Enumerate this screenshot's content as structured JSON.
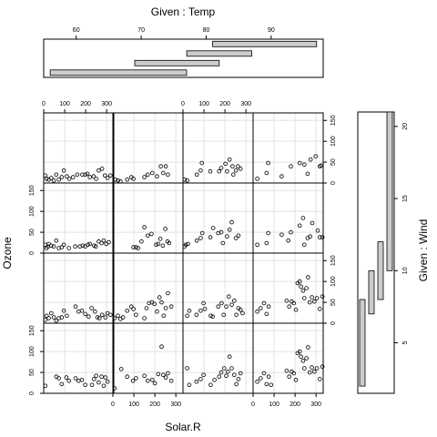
{
  "chart_data": {
    "type": "scatter",
    "plot_kind": "coplot",
    "xlabel": "Solar.R",
    "ylabel": "Ozone",
    "given_top_label": "Given : Temp",
    "given_right_label": "Given : Wind",
    "xlim": [
      0,
      334
    ],
    "ylim": [
      0,
      168
    ],
    "x_ticks": [
      0,
      100,
      200,
      300
    ],
    "y_ticks": [
      0,
      50,
      100,
      150
    ],
    "temp_axis": {
      "range": [
        55,
        98
      ],
      "ticks": [
        60,
        70,
        80,
        90
      ]
    },
    "wind_axis": {
      "range": [
        1.5,
        21
      ],
      "ticks": [
        5,
        10,
        15,
        20
      ]
    },
    "temp_intervals": [
      [
        56,
        77
      ],
      [
        69,
        82
      ],
      [
        77,
        87
      ],
      [
        81,
        97
      ]
    ],
    "wind_intervals": [
      [
        2,
        8
      ],
      [
        7,
        10
      ],
      [
        8,
        12
      ],
      [
        10,
        21
      ]
    ],
    "grid": true,
    "panels": [
      {
        "row": 1,
        "col": 1,
        "points": [
          [
            8,
            18
          ],
          [
            14,
            10
          ],
          [
            24,
            8
          ],
          [
            36,
            12
          ],
          [
            48,
            6
          ],
          [
            60,
            20
          ],
          [
            72,
            8
          ],
          [
            86,
            14
          ],
          [
            96,
            30
          ],
          [
            110,
            16
          ],
          [
            122,
            10
          ],
          [
            140,
            14
          ],
          [
            160,
            20
          ],
          [
            184,
            20
          ],
          [
            198,
            20
          ],
          [
            208,
            22
          ],
          [
            220,
            14
          ],
          [
            238,
            16
          ],
          [
            250,
            10
          ],
          [
            262,
            30
          ],
          [
            278,
            34
          ],
          [
            292,
            18
          ],
          [
            304,
            12
          ],
          [
            318,
            18
          ]
        ]
      },
      {
        "row": 1,
        "col": 2,
        "points": [
          [
            12,
            8
          ],
          [
            24,
            6
          ],
          [
            36,
            4
          ],
          [
            68,
            8
          ],
          [
            88,
            14
          ],
          [
            98,
            10
          ],
          [
            150,
            14
          ],
          [
            166,
            20
          ],
          [
            188,
            24
          ],
          [
            210,
            16
          ],
          [
            228,
            40
          ],
          [
            240,
            24
          ],
          [
            252,
            40
          ],
          [
            262,
            20
          ]
        ]
      },
      {
        "row": 1,
        "col": 3,
        "points": [
          [
            8,
            8
          ],
          [
            20,
            6
          ],
          [
            66,
            20
          ],
          [
            84,
            30
          ],
          [
            90,
            48
          ],
          [
            130,
            28
          ],
          [
            172,
            28
          ],
          [
            182,
            36
          ],
          [
            202,
            46
          ],
          [
            210,
            28
          ],
          [
            222,
            56
          ],
          [
            236,
            40
          ],
          [
            240,
            20
          ],
          [
            252,
            30
          ],
          [
            262,
            40
          ],
          [
            274,
            34
          ]
        ]
      },
      {
        "row": 1,
        "col": 4,
        "points": [
          [
            20,
            10
          ],
          [
            64,
            24
          ],
          [
            72,
            48
          ],
          [
            136,
            16
          ],
          [
            180,
            40
          ],
          [
            222,
            48
          ],
          [
            244,
            44
          ],
          [
            260,
            22
          ],
          [
            274,
            56
          ],
          [
            298,
            64
          ],
          [
            318,
            40
          ],
          [
            324,
            42
          ]
        ]
      },
      {
        "row": 2,
        "col": 1,
        "points": [
          [
            8,
            20
          ],
          [
            14,
            12
          ],
          [
            20,
            16
          ],
          [
            24,
            22
          ],
          [
            36,
            18
          ],
          [
            48,
            16
          ],
          [
            60,
            30
          ],
          [
            72,
            12
          ],
          [
            86,
            14
          ],
          [
            96,
            20
          ],
          [
            120,
            12
          ],
          [
            150,
            16
          ],
          [
            172,
            16
          ],
          [
            186,
            18
          ],
          [
            198,
            16
          ],
          [
            210,
            20
          ],
          [
            220,
            22
          ],
          [
            240,
            18
          ],
          [
            248,
            16
          ],
          [
            262,
            28
          ],
          [
            276,
            24
          ],
          [
            286,
            30
          ],
          [
            298,
            22
          ],
          [
            310,
            26
          ]
        ]
      },
      {
        "row": 2,
        "col": 2,
        "points": [
          [
            98,
            14
          ],
          [
            110,
            14
          ],
          [
            120,
            12
          ],
          [
            136,
            28
          ],
          [
            150,
            62
          ],
          [
            166,
            42
          ],
          [
            184,
            46
          ],
          [
            206,
            20
          ],
          [
            216,
            22
          ],
          [
            226,
            34
          ],
          [
            238,
            18
          ],
          [
            250,
            58
          ],
          [
            260,
            28
          ],
          [
            268,
            24
          ]
        ]
      },
      {
        "row": 2,
        "col": 3,
        "points": [
          [
            8,
            16
          ],
          [
            14,
            20
          ],
          [
            24,
            22
          ],
          [
            66,
            30
          ],
          [
            84,
            36
          ],
          [
            92,
            48
          ],
          [
            130,
            38
          ],
          [
            144,
            60
          ],
          [
            168,
            48
          ],
          [
            182,
            50
          ],
          [
            190,
            24
          ],
          [
            210,
            40
          ],
          [
            222,
            56
          ],
          [
            232,
            74
          ],
          [
            252,
            36
          ],
          [
            264,
            42
          ]
        ]
      },
      {
        "row": 2,
        "col": 4,
        "points": [
          [
            20,
            20
          ],
          [
            64,
            24
          ],
          [
            72,
            48
          ],
          [
            136,
            44
          ],
          [
            168,
            30
          ],
          [
            180,
            50
          ],
          [
            222,
            66
          ],
          [
            238,
            84
          ],
          [
            244,
            20
          ],
          [
            260,
            36
          ],
          [
            272,
            40
          ],
          [
            282,
            72
          ],
          [
            308,
            54
          ],
          [
            318,
            38
          ],
          [
            330,
            38
          ]
        ]
      },
      {
        "row": 3,
        "col": 1,
        "points": [
          [
            8,
            8
          ],
          [
            14,
            18
          ],
          [
            24,
            12
          ],
          [
            36,
            24
          ],
          [
            48,
            14
          ],
          [
            60,
            6
          ],
          [
            72,
            12
          ],
          [
            86,
            14
          ],
          [
            96,
            30
          ],
          [
            110,
            18
          ],
          [
            152,
            40
          ],
          [
            166,
            28
          ],
          [
            182,
            30
          ],
          [
            198,
            22
          ],
          [
            214,
            16
          ],
          [
            228,
            36
          ],
          [
            244,
            28
          ],
          [
            256,
            14
          ],
          [
            266,
            12
          ],
          [
            278,
            20
          ],
          [
            294,
            14
          ],
          [
            304,
            24
          ],
          [
            318,
            20
          ]
        ]
      },
      {
        "row": 3,
        "col": 2,
        "points": [
          [
            8,
            12
          ],
          [
            24,
            18
          ],
          [
            36,
            10
          ],
          [
            48,
            14
          ],
          [
            68,
            30
          ],
          [
            88,
            40
          ],
          [
            98,
            34
          ],
          [
            110,
            20
          ],
          [
            150,
            12
          ],
          [
            160,
            36
          ],
          [
            172,
            48
          ],
          [
            186,
            50
          ],
          [
            198,
            46
          ],
          [
            210,
            28
          ],
          [
            222,
            62
          ],
          [
            232,
            50
          ],
          [
            242,
            18
          ],
          [
            252,
            36
          ],
          [
            262,
            72
          ],
          [
            278,
            40
          ]
        ]
      },
      {
        "row": 3,
        "col": 3,
        "points": [
          [
            20,
            18
          ],
          [
            30,
            30
          ],
          [
            64,
            20
          ],
          [
            84,
            30
          ],
          [
            98,
            48
          ],
          [
            104,
            34
          ],
          [
            132,
            18
          ],
          [
            142,
            16
          ],
          [
            168,
            40
          ],
          [
            184,
            48
          ],
          [
            194,
            20
          ],
          [
            206,
            40
          ],
          [
            218,
            64
          ],
          [
            232,
            44
          ],
          [
            244,
            54
          ],
          [
            254,
            20
          ],
          [
            264,
            36
          ],
          [
            274,
            32
          ],
          [
            284,
            24
          ]
        ]
      },
      {
        "row": 3,
        "col": 4,
        "points": [
          [
            20,
            28
          ],
          [
            36,
            36
          ],
          [
            52,
            48
          ],
          [
            64,
            22
          ],
          [
            74,
            40
          ],
          [
            160,
            54
          ],
          [
            172,
            40
          ],
          [
            184,
            52
          ],
          [
            194,
            48
          ],
          [
            204,
            32
          ],
          [
            212,
            96
          ],
          [
            222,
            100
          ],
          [
            228,
            88
          ],
          [
            238,
            78
          ],
          [
            244,
            60
          ],
          [
            254,
            84
          ],
          [
            262,
            110
          ],
          [
            270,
            50
          ],
          [
            280,
            62
          ],
          [
            292,
            52
          ],
          [
            304,
            60
          ],
          [
            318,
            34
          ],
          [
            330,
            64
          ]
        ]
      },
      {
        "row": 4,
        "col": 1,
        "points": [
          [
            8,
            18
          ],
          [
            60,
            40
          ],
          [
            72,
            36
          ],
          [
            86,
            22
          ],
          [
            108,
            38
          ],
          [
            120,
            30
          ],
          [
            152,
            36
          ],
          [
            166,
            30
          ],
          [
            182,
            32
          ],
          [
            198,
            20
          ],
          [
            230,
            20
          ],
          [
            240,
            34
          ],
          [
            250,
            42
          ],
          [
            262,
            26
          ],
          [
            276,
            40
          ],
          [
            286,
            18
          ],
          [
            294,
            38
          ],
          [
            304,
            28
          ]
        ]
      },
      {
        "row": 4,
        "col": 2,
        "points": [
          [
            8,
            12
          ],
          [
            40,
            58
          ],
          [
            68,
            40
          ],
          [
            96,
            30
          ],
          [
            110,
            36
          ],
          [
            150,
            42
          ],
          [
            166,
            30
          ],
          [
            188,
            32
          ],
          [
            200,
            24
          ],
          [
            216,
            46
          ],
          [
            232,
            112
          ],
          [
            240,
            44
          ],
          [
            252,
            38
          ],
          [
            262,
            48
          ],
          [
            278,
            30
          ]
        ]
      },
      {
        "row": 4,
        "col": 3,
        "points": [
          [
            20,
            60
          ],
          [
            30,
            20
          ],
          [
            64,
            28
          ],
          [
            84,
            34
          ],
          [
            98,
            44
          ],
          [
            132,
            20
          ],
          [
            150,
            32
          ],
          [
            172,
            40
          ],
          [
            182,
            50
          ],
          [
            196,
            60
          ],
          [
            206,
            42
          ],
          [
            214,
            52
          ],
          [
            222,
            88
          ],
          [
            232,
            60
          ],
          [
            244,
            44
          ],
          [
            254,
            22
          ],
          [
            264,
            34
          ],
          [
            274,
            48
          ]
        ]
      },
      {
        "row": 4,
        "col": 4,
        "points": [
          [
            20,
            28
          ],
          [
            36,
            36
          ],
          [
            52,
            48
          ],
          [
            64,
            22
          ],
          [
            74,
            40
          ],
          [
            86,
            20
          ],
          [
            160,
            54
          ],
          [
            172,
            40
          ],
          [
            184,
            52
          ],
          [
            194,
            48
          ],
          [
            204,
            32
          ],
          [
            212,
            96
          ],
          [
            222,
            100
          ],
          [
            228,
            88
          ],
          [
            238,
            78
          ],
          [
            244,
            60
          ],
          [
            254,
            84
          ],
          [
            262,
            110
          ],
          [
            270,
            50
          ],
          [
            280,
            62
          ],
          [
            292,
            52
          ],
          [
            304,
            60
          ],
          [
            318,
            34
          ],
          [
            330,
            64
          ]
        ]
      }
    ]
  }
}
